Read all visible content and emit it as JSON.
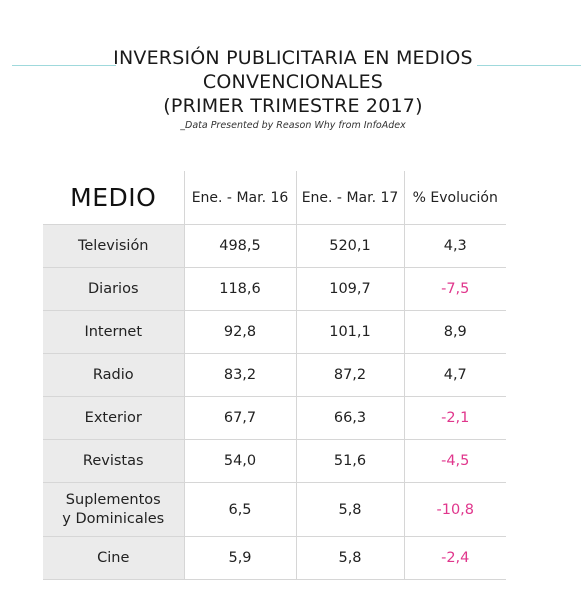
{
  "title": {
    "line1": "INVERSIÓN PUBLICITARIA EN MEDIOS",
    "line2": "CONVENCIONALES",
    "line3": "(PRIMER TRIMESTRE 2017)"
  },
  "subtitle": "_Data Presented by Reason Why from InfoAdex",
  "colors": {
    "accent_line": "#9fd9dc",
    "negative": "#e0368c",
    "label_bg": "#ebebeb"
  },
  "table": {
    "headers": [
      "MEDIO",
      "Ene. - Mar. 16",
      "Ene. - Mar. 17",
      "% Evolución"
    ],
    "rows": [
      {
        "medio": "Televisión",
        "v16": "498,5",
        "v17": "520,1",
        "evol": "4,3"
      },
      {
        "medio": "Diarios",
        "v16": "118,6",
        "v17": "109,7",
        "evol": "-7,5"
      },
      {
        "medio": "Internet",
        "v16": "92,8",
        "v17": "101,1",
        "evol": "8,9"
      },
      {
        "medio": "Radio",
        "v16": "83,2",
        "v17": "87,2",
        "evol": "4,7"
      },
      {
        "medio": "Exterior",
        "v16": "67,7",
        "v17": "66,3",
        "evol": "-2,1"
      },
      {
        "medio": "Revistas",
        "v16": "54,0",
        "v17": "51,6",
        "evol": "-4,5"
      },
      {
        "medio_line1": "Suplementos",
        "medio_line2": "y Dominicales",
        "v16": "6,5",
        "v17": "5,8",
        "evol": "-10,8"
      },
      {
        "medio": "Cine",
        "v16": "5,9",
        "v17": "5,8",
        "evol": "-2,4"
      }
    ]
  }
}
